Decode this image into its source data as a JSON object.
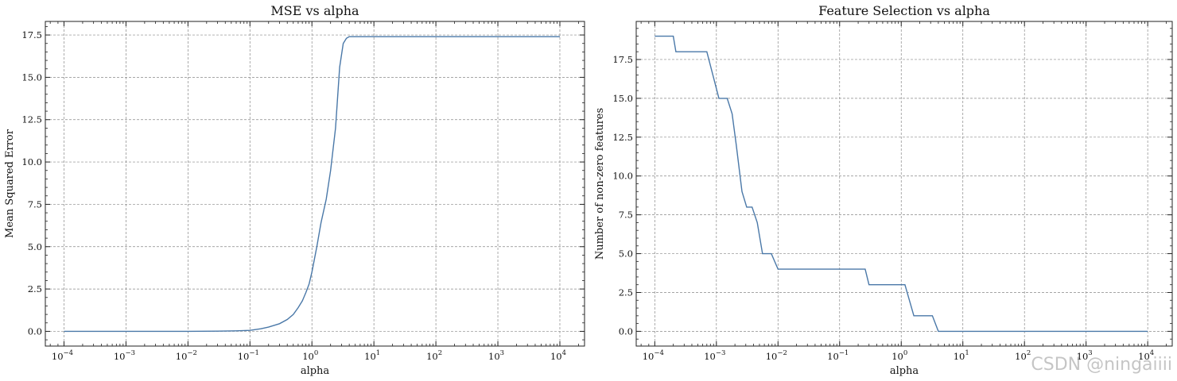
{
  "watermark": "CSDN @ningaiiii",
  "chart_data": [
    {
      "type": "line",
      "title": "MSE vs alpha",
      "xlabel": "alpha",
      "ylabel": "Mean Squared Error",
      "xscale": "log",
      "xlim": [
        5e-05,
        25000
      ],
      "ylim": [
        -0.87,
        18.3
      ],
      "xticks": [
        0.0001,
        0.001,
        0.01,
        0.1,
        1,
        10,
        100,
        1000,
        10000
      ],
      "xtick_labels": [
        {
          "base": "10",
          "exp": "−4"
        },
        {
          "base": "10",
          "exp": "−3"
        },
        {
          "base": "10",
          "exp": "−2"
        },
        {
          "base": "10",
          "exp": "−1"
        },
        {
          "base": "10",
          "exp": "0"
        },
        {
          "base": "10",
          "exp": "1"
        },
        {
          "base": "10",
          "exp": "2"
        },
        {
          "base": "10",
          "exp": "3"
        },
        {
          "base": "10",
          "exp": "4"
        }
      ],
      "yticks": [
        0.0,
        2.5,
        5.0,
        7.5,
        10.0,
        12.5,
        15.0,
        17.5
      ],
      "ytick_labels": [
        "0.0",
        "2.5",
        "5.0",
        "7.5",
        "10.0",
        "12.5",
        "15.0",
        "17.5"
      ],
      "grid": true,
      "line_color": "#4a78a8",
      "series": [
        {
          "x": [
            0.0001,
            0.001,
            0.01,
            0.03,
            0.06,
            0.1,
            0.15,
            0.2,
            0.3,
            0.4,
            0.5,
            0.6,
            0.7,
            0.8,
            0.9,
            1.0,
            1.2,
            1.4,
            1.7,
            2.0,
            2.4,
            2.8,
            3.2,
            3.6,
            4.0,
            10000
          ],
          "y": [
            0.0,
            0.0,
            0.0,
            0.01,
            0.03,
            0.06,
            0.15,
            0.25,
            0.45,
            0.7,
            1.0,
            1.4,
            1.8,
            2.3,
            2.8,
            3.5,
            5.0,
            6.4,
            7.8,
            9.5,
            12.0,
            15.6,
            17.0,
            17.3,
            17.4,
            17.4
          ]
        }
      ]
    },
    {
      "type": "line",
      "title": "Feature Selection vs alpha",
      "xlabel": "alpha",
      "ylabel": "Number of non-zero features",
      "xscale": "log",
      "xlim": [
        5e-05,
        25000
      ],
      "ylim": [
        -0.95,
        19.95
      ],
      "xticks": [
        0.0001,
        0.001,
        0.01,
        0.1,
        1,
        10,
        100,
        1000,
        10000
      ],
      "xtick_labels": [
        {
          "base": "10",
          "exp": "−4"
        },
        {
          "base": "10",
          "exp": "−3"
        },
        {
          "base": "10",
          "exp": "−2"
        },
        {
          "base": "10",
          "exp": "−1"
        },
        {
          "base": "10",
          "exp": "0"
        },
        {
          "base": "10",
          "exp": "1"
        },
        {
          "base": "10",
          "exp": "2"
        },
        {
          "base": "10",
          "exp": "3"
        },
        {
          "base": "10",
          "exp": "4"
        }
      ],
      "yticks": [
        0.0,
        2.5,
        5.0,
        7.5,
        10.0,
        12.5,
        15.0,
        17.5
      ],
      "ytick_labels": [
        "0.0",
        "2.5",
        "5.0",
        "7.5",
        "10.0",
        "12.5",
        "15.0",
        "17.5"
      ],
      "grid": true,
      "line_color": "#4a78a8",
      "series": [
        {
          "x": [
            0.0001,
            0.0002,
            0.00022,
            0.0007,
            0.0011,
            0.0015,
            0.0018,
            0.0021,
            0.0026,
            0.0031,
            0.0038,
            0.0046,
            0.0056,
            0.0078,
            0.01,
            0.26,
            0.3,
            1.0,
            1.15,
            1.6,
            3.2,
            4.0,
            10000
          ],
          "y": [
            19,
            19,
            18,
            18,
            15,
            15,
            14,
            12,
            9,
            8,
            8,
            7,
            5,
            5,
            4,
            4,
            3,
            3,
            3,
            1,
            1,
            0,
            0
          ]
        }
      ]
    }
  ]
}
